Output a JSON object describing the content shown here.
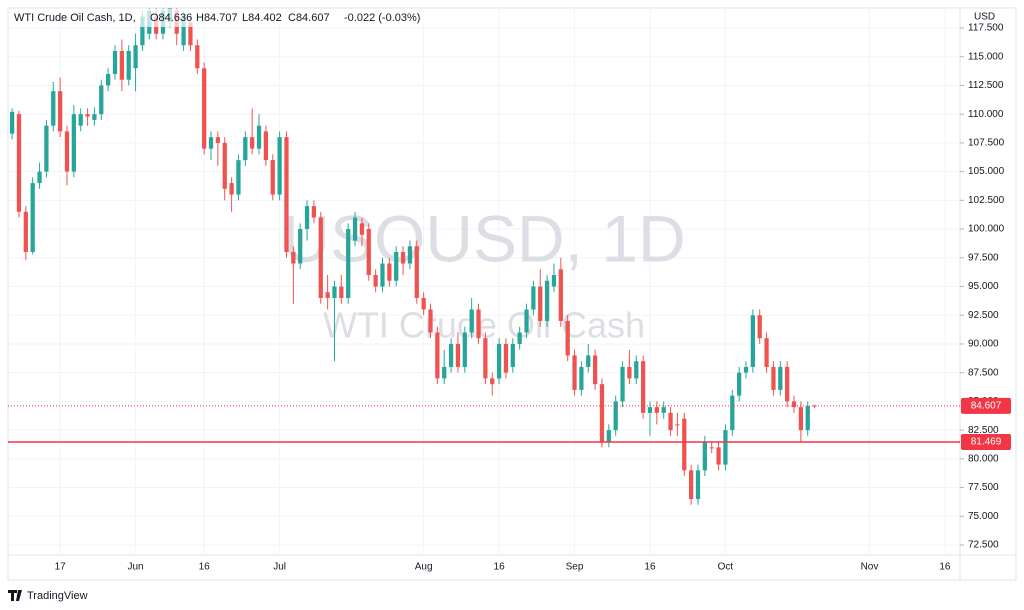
{
  "chart_data": {
    "type": "candlestick",
    "title": "WTI Crude Oil Cash, 1D,",
    "legend": [
      {
        "value": 84.636,
        "label": "O84.636"
      },
      {
        "value": 84.707,
        "label": "H84.707"
      },
      {
        "value": 84.402,
        "label": "L84.402"
      },
      {
        "value": 84.607,
        "label": "C84.607"
      }
    ],
    "change": "-0.022 (-0.03%)",
    "watermark": {
      "symbol": "USOUSD, 1D",
      "description": "WTI Crude Oil Cash"
    },
    "currency": "USD",
    "brand": "TradingView",
    "up_color": "#26a69a",
    "down_color": "#ef5350",
    "grid": true,
    "open": [
      108.3,
      110,
      101.5,
      98,
      104,
      105,
      109,
      112,
      108.5,
      105,
      109,
      110,
      109.5,
      110,
      112.5,
      113.5,
      115.5,
      113,
      114,
      116,
      117,
      118.5,
      117,
      118,
      119,
      116,
      118,
      116,
      114,
      107,
      108,
      107.5,
      104,
      103,
      106,
      108,
      107,
      108.5,
      106,
      103,
      108,
      98,
      97,
      100,
      102,
      101,
      94.5,
      94,
      95,
      94,
      99,
      100.5,
      100,
      96,
      95,
      97,
      95.5,
      98,
      97,
      98.5,
      94,
      93,
      91,
      87,
      88,
      90,
      88,
      91,
      93,
      90.5,
      87,
      87,
      90,
      88,
      90,
      91,
      93,
      95,
      92,
      95,
      96.5,
      92,
      89,
      86,
      88,
      89,
      86.5,
      81.5,
      82.5,
      85,
      88,
      87,
      88.5,
      84,
      84.5,
      84,
      84,
      83,
      83.5,
      79,
      76.5,
      79,
      81,
      81,
      79.5,
      82.5,
      85.5,
      87.5,
      88,
      92.5,
      90.5,
      88,
      86,
      88,
      85,
      84.5,
      82.5,
      84.636
    ],
    "high": [
      110.5,
      110.3,
      102,
      104.5,
      105.8,
      109.5,
      112.8,
      113.2,
      109,
      110.8,
      110.5,
      110.5,
      110.6,
      113,
      114,
      116,
      116.5,
      116,
      117,
      119,
      119.2,
      119.2,
      119.2,
      119.2,
      119.2,
      119,
      118.5,
      116.5,
      114.5,
      108.5,
      108.5,
      108,
      104.5,
      106.5,
      108.5,
      110.5,
      110,
      109,
      106.5,
      108.5,
      108.5,
      98.5,
      100.5,
      102.5,
      102.5,
      101.5,
      96,
      95.5,
      96,
      100.5,
      101.5,
      101,
      100.5,
      96.5,
      97.5,
      97.5,
      98.5,
      98.5,
      99,
      99,
      94.5,
      93.5,
      91.5,
      89.5,
      90.5,
      91,
      91.5,
      94,
      93.5,
      91,
      87.5,
      90.5,
      90.5,
      90.5,
      91.5,
      93.5,
      95.5,
      96.5,
      96,
      97,
      97.5,
      92.5,
      89.5,
      88.5,
      90,
      89.5,
      87,
      83,
      85.5,
      88.5,
      89.5,
      89,
      89,
      85,
      85,
      85,
      84.5,
      84,
      84,
      79.5,
      79.5,
      82,
      81.5,
      81.5,
      83,
      86,
      88,
      88.5,
      93,
      93,
      91,
      88.5,
      88.5,
      88.5,
      85.5,
      85,
      85,
      84.707
    ],
    "low": [
      107.8,
      101,
      97.3,
      97.8,
      103.5,
      104.5,
      108.5,
      108,
      103.8,
      104.5,
      108.5,
      109,
      109,
      109.5,
      112,
      113,
      112,
      112.5,
      112,
      115.5,
      116.5,
      116.5,
      116.5,
      117.5,
      116,
      115.5,
      115.5,
      113.5,
      106.5,
      106,
      105.5,
      102.5,
      101.5,
      102.5,
      105.5,
      106.5,
      106.5,
      105.5,
      102.5,
      102.5,
      97.5,
      93.5,
      96.5,
      99,
      100.5,
      93.5,
      93,
      88.5,
      93.5,
      93.5,
      98.5,
      98.5,
      95.5,
      94.5,
      94.5,
      95,
      95,
      96,
      96.5,
      93.5,
      92.5,
      90.5,
      86.5,
      86.5,
      87.5,
      87.5,
      87.5,
      90.5,
      90,
      86.5,
      85.5,
      86.5,
      87,
      87.5,
      89.5,
      90.5,
      92.5,
      91.5,
      91.5,
      94.5,
      91.5,
      88.5,
      85.5,
      85.5,
      87.5,
      86,
      81,
      81,
      82,
      84.5,
      86.5,
      86.5,
      83.5,
      82,
      83,
      83.5,
      82,
      82,
      78.5,
      76,
      76,
      78.5,
      80.5,
      79,
      79,
      82,
      85,
      87,
      87.5,
      90,
      87.5,
      85.5,
      85.5,
      84.5,
      84,
      81.5,
      82,
      84.402
    ],
    "close": [
      110.2,
      101.5,
      98,
      104,
      105,
      109,
      112,
      108.5,
      105,
      110,
      110,
      109.8,
      110,
      112.5,
      113.5,
      115.5,
      113,
      115.5,
      116,
      118.5,
      119,
      117,
      119,
      119.2,
      117,
      118.5,
      116,
      114,
      107,
      108,
      107.5,
      103.5,
      103,
      106,
      108,
      107,
      109,
      106,
      103,
      108,
      98,
      97,
      100,
      102,
      101,
      94,
      94,
      95,
      94,
      100,
      101,
      99.5,
      96,
      95,
      97,
      95.5,
      98,
      97,
      98.5,
      94,
      93,
      91,
      87,
      88,
      90,
      88,
      91,
      93,
      90.5,
      87,
      86.5,
      90,
      87.5,
      90,
      91,
      93,
      95,
      92,
      95.5,
      96,
      92,
      89,
      86,
      88,
      89,
      86.5,
      81.5,
      82.5,
      85,
      88,
      87,
      88.5,
      84,
      84.5,
      84,
      84.5,
      82.5,
      83,
      79,
      76.5,
      79,
      81.5,
      81,
      79.5,
      82.5,
      85.5,
      87.5,
      88,
      92.5,
      90.5,
      88,
      86,
      88,
      85,
      84.5,
      82.5,
      84.6,
      84.607
    ],
    "price_lines": [
      {
        "value": 84.607,
        "style": "dotted",
        "color": "#f23645"
      },
      {
        "value": 81.469,
        "style": "solid",
        "color": "#f23645"
      }
    ],
    "xlim": [
      -0.6,
      138.2
    ],
    "xticks": [
      {
        "value": 7,
        "label": "17"
      },
      {
        "value": 18,
        "label": "Jun"
      },
      {
        "value": 28,
        "label": "16"
      },
      {
        "value": 39,
        "label": "Jul"
      },
      {
        "value": 60,
        "label": "Aug"
      },
      {
        "value": 71,
        "label": "16"
      },
      {
        "value": 82,
        "label": "Sep"
      },
      {
        "value": 93,
        "label": "16"
      },
      {
        "value": 104,
        "label": "Oct"
      },
      {
        "value": 125,
        "label": "Nov"
      },
      {
        "value": 136,
        "label": "16"
      }
    ],
    "ylim": [
      71.63,
      119.24
    ],
    "yticks": [
      {
        "value": 72.5,
        "label": "72.500"
      },
      {
        "value": 75,
        "label": "75.000"
      },
      {
        "value": 77.5,
        "label": "77.500"
      },
      {
        "value": 80,
        "label": "80.000"
      },
      {
        "value": 82.5,
        "label": "82.500"
      },
      {
        "value": 85,
        "label": "85.000"
      },
      {
        "value": 87.5,
        "label": "87.500"
      },
      {
        "value": 90,
        "label": "90.000"
      },
      {
        "value": 92.5,
        "label": "92.500"
      },
      {
        "value": 95,
        "label": "95.000"
      },
      {
        "value": 97.5,
        "label": "97.500"
      },
      {
        "value": 100,
        "label": "100.000"
      },
      {
        "value": 102.5,
        "label": "102.500"
      },
      {
        "value": 105,
        "label": "105.000"
      },
      {
        "value": 107.5,
        "label": "107.500"
      },
      {
        "value": 110,
        "label": "110.000"
      },
      {
        "value": 112.5,
        "label": "112.500"
      },
      {
        "value": 115,
        "label": "115.000"
      },
      {
        "value": 117.5,
        "label": "117.500"
      }
    ]
  }
}
